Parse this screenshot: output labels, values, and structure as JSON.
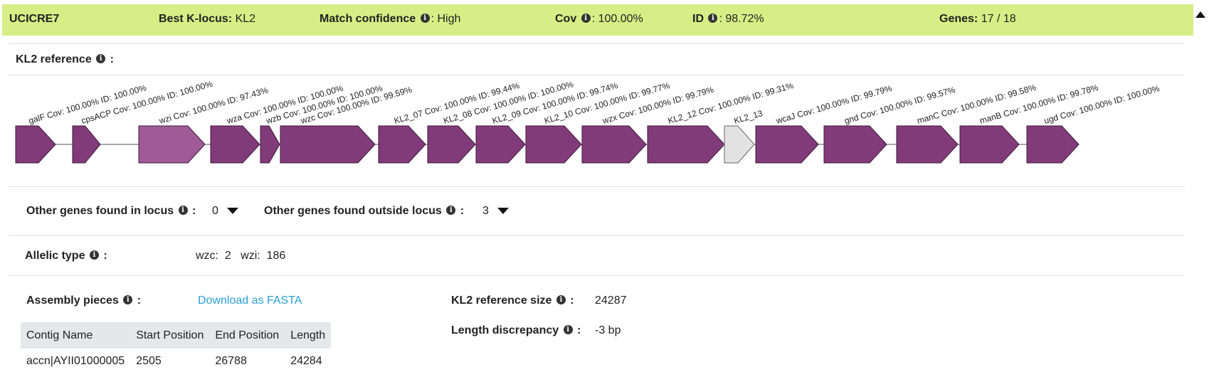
{
  "header": {
    "assembly": "UCICRE7",
    "best_locus_label": "Best K-locus:",
    "best_locus_value": "KL2",
    "match_conf_label": "Match confidence",
    "match_conf_value": ": High",
    "cov_label": "Cov",
    "cov_value": ": 100.00%",
    "id_label": "ID",
    "id_value": ": 98.72%",
    "genes_label": "Genes:",
    "genes_value": "17 / 18"
  },
  "reference": {
    "label": "KL2 reference",
    "suffix": ":"
  },
  "genes": [
    {
      "label": "galF Cov: 100.00% ID: 100.00%",
      "status": "full"
    },
    {
      "label": "cpsACP Cov: 100.00% ID: 100.00%",
      "status": "full"
    },
    {
      "label": "wzi Cov: 100.00% ID: 97.43%",
      "status": "lower-id"
    },
    {
      "label": "wza Cov: 100.00% ID: 100.00%",
      "status": "full"
    },
    {
      "label": "wzb Cov: 100.00% ID: 100.00%",
      "status": "full"
    },
    {
      "label": "wzc Cov: 100.00% ID: 99.59%",
      "status": "full"
    },
    {
      "label": "KL2_07 Cov: 100.00% ID: 99.44%",
      "status": "full"
    },
    {
      "label": "KL2_08 Cov: 100.00% ID: 100.00%",
      "status": "full"
    },
    {
      "label": "KL2_09 Cov: 100.00% ID: 99.74%",
      "status": "full"
    },
    {
      "label": "KL2_10 Cov: 100.00% ID: 99.77%",
      "status": "full"
    },
    {
      "label": "wzx Cov: 100.00% ID: 99.79%",
      "status": "full"
    },
    {
      "label": "KL2_12 Cov: 100.00% ID: 99.31%",
      "status": "full"
    },
    {
      "label": "KL2_13",
      "status": "missing"
    },
    {
      "label": "wcaJ Cov: 100.00% ID: 99.79%",
      "status": "full"
    },
    {
      "label": "gnd Cov: 100.00% ID: 99.57%",
      "status": "full"
    },
    {
      "label": "manC Cov: 100.00% ID: 99.58%",
      "status": "full"
    },
    {
      "label": "manB Cov: 100.00% ID: 99.78%",
      "status": "full"
    },
    {
      "label": "ugd Cov: 100.00% ID: 100.00%",
      "status": "full"
    }
  ],
  "colors": {
    "header_bg": "#d6ee85",
    "gene_full": "#823b7a",
    "gene_lower_id": "#a05a98",
    "gene_missing": "#e2e2e2",
    "link": "#2a9fd6"
  },
  "other_genes": {
    "inside_label": "Other genes found in locus",
    "inside_count": "0",
    "outside_label": "Other genes found outside locus",
    "outside_count": "3"
  },
  "allelic": {
    "label": "Allelic type",
    "wzc_label": "wzc:",
    "wzc_value": "2",
    "wzi_label": "wzi:",
    "wzi_value": "186"
  },
  "assembly_pieces": {
    "label": "Assembly pieces",
    "download_link": "Download as FASTA",
    "columns": [
      "Contig Name",
      "Start Position",
      "End Position",
      "Length"
    ],
    "rows": [
      [
        "accn|AYII01000005",
        "2505",
        "26788",
        "24284"
      ]
    ]
  },
  "reference_size": {
    "label": "KL2 reference size",
    "value": "24287"
  },
  "length_discrepancy": {
    "label": "Length discrepancy",
    "value": "-3 bp"
  }
}
